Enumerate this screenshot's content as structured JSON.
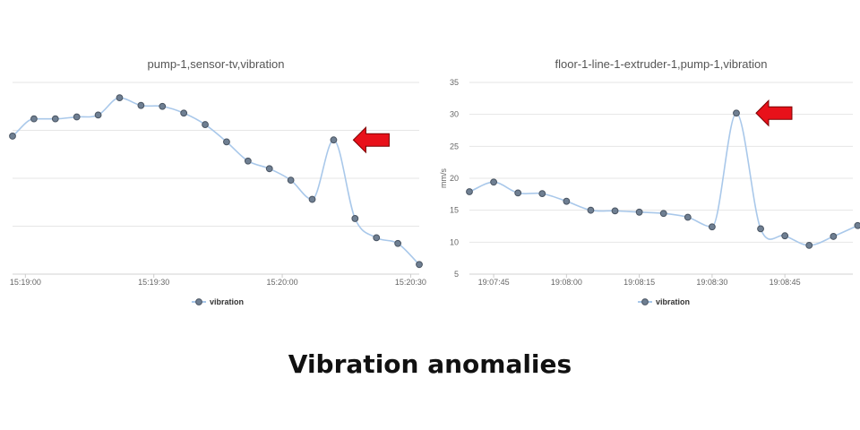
{
  "caption": "Vibration anomalies",
  "colors": {
    "line": "#a9c8ea",
    "marker_fill": "#6f7f92",
    "marker_stroke": "#4a5563",
    "grid": "#e6e6e6",
    "arrow": "#e8111a",
    "arrow_stroke": "#7a0000"
  },
  "chart_data": [
    {
      "type": "line",
      "title": "pump-1,sensor-tv,vibration",
      "xlabel": "",
      "ylabel": "",
      "x_ticks": [
        "15:19:00",
        "15:19:30",
        "15:20:00",
        "15:20:30"
      ],
      "x_tick_values": [
        0,
        30,
        60,
        90
      ],
      "xlim": [
        -3,
        92
      ],
      "ylim": [
        0,
        10
      ],
      "y_ticks": [],
      "y_gridlines": [
        2.5,
        5,
        7.5,
        10
      ],
      "grid": true,
      "legend": "bottom-center",
      "series": [
        {
          "name": "vibration",
          "x": [
            -3,
            2,
            7,
            12,
            17,
            22,
            27,
            32,
            37,
            42,
            47,
            52,
            57,
            62,
            67,
            72,
            77,
            82,
            87,
            92
          ],
          "y": [
            7.2,
            8.1,
            8.1,
            8.2,
            8.3,
            9.2,
            8.8,
            8.75,
            8.4,
            7.8,
            6.9,
            5.9,
            5.5,
            4.9,
            3.9,
            7.0,
            2.9,
            1.9,
            1.6,
            0.5
          ]
        }
      ],
      "anomaly_index": 15
    },
    {
      "type": "line",
      "title": "floor-1-line-1-extruder-1,pump-1,vibration",
      "xlabel": "",
      "ylabel": "mm/s",
      "x_ticks": [
        "19:07:45",
        "19:08:00",
        "19:08:15",
        "19:08:30",
        "19:08:45"
      ],
      "x_tick_values": [
        45,
        60,
        75,
        90,
        105
      ],
      "xlim": [
        40,
        119
      ],
      "ylim": [
        5,
        35
      ],
      "y_ticks": [
        5,
        10,
        15,
        20,
        25,
        30,
        35
      ],
      "grid": true,
      "legend": "bottom-center",
      "series": [
        {
          "name": "vibration",
          "x": [
            40,
            45,
            50,
            55,
            60,
            65,
            70,
            75,
            80,
            85,
            90,
            95,
            100,
            105,
            110,
            115,
            120
          ],
          "y": [
            17.9,
            19.4,
            17.7,
            17.6,
            16.4,
            15.0,
            14.9,
            14.7,
            14.5,
            13.9,
            12.4,
            30.2,
            12.1,
            11.0,
            9.5,
            10.9,
            12.6
          ]
        }
      ],
      "anomaly_index": 11
    }
  ]
}
